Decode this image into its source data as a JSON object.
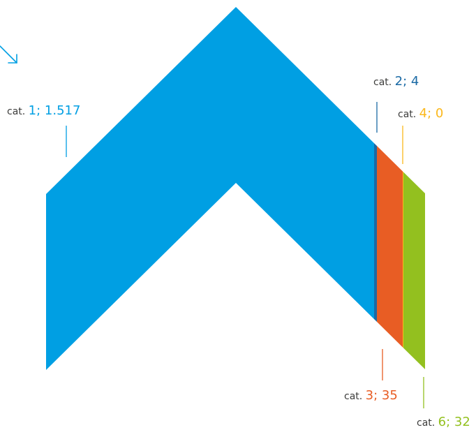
{
  "chart_data": {
    "type": "area",
    "label_prefix": "cat.",
    "series": [
      {
        "name": "1",
        "value": 1517,
        "display_value": "1.517",
        "color": "#009fe3"
      },
      {
        "name": "2",
        "value": 4,
        "display_value": "4",
        "color": "#1b6aa5"
      },
      {
        "name": "3",
        "value": 35,
        "display_value": "35",
        "color": "#e85d24"
      },
      {
        "name": "4",
        "value": 0,
        "display_value": "0",
        "color": "#fbb81c"
      },
      {
        "name": "6",
        "value": 32,
        "display_value": "32",
        "color": "#93c01f"
      }
    ],
    "label_text_color": "#3c3c3b",
    "arrow_icon": {
      "name": "arrow-down-right-icon",
      "color": "#009fe3"
    }
  }
}
